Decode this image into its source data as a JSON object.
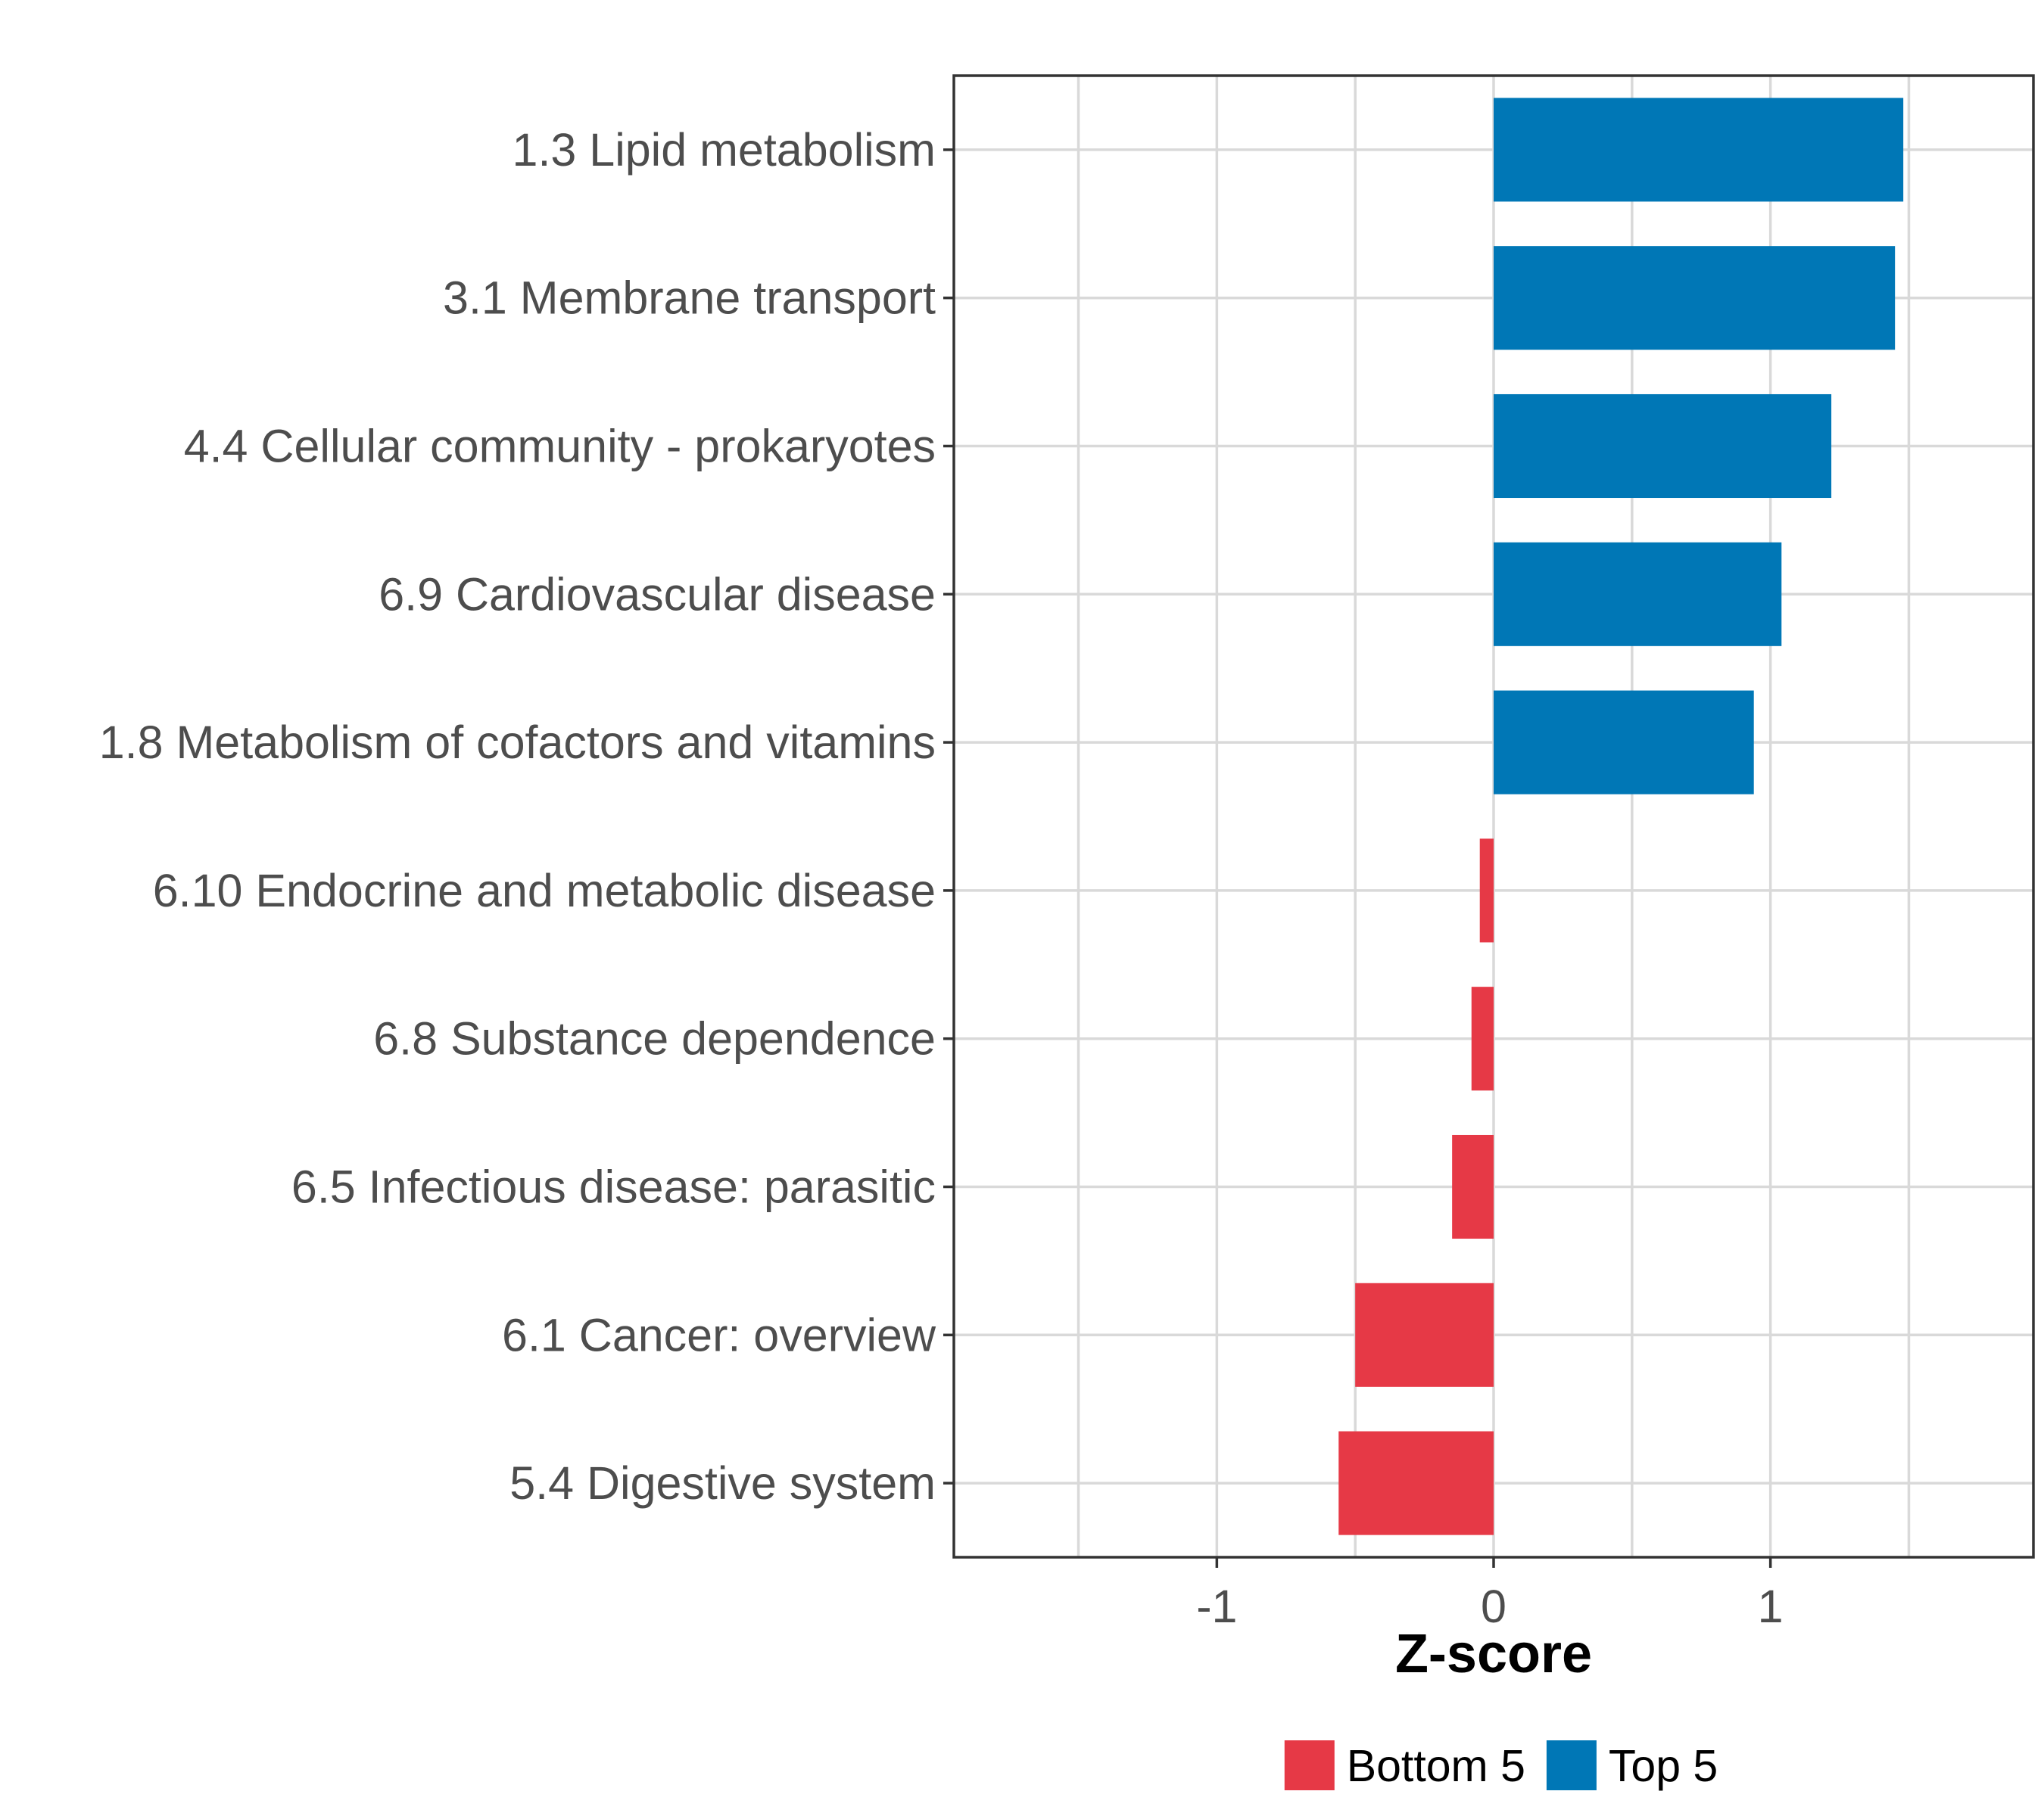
{
  "chart_data": {
    "type": "bar",
    "orientation": "horizontal",
    "title": "",
    "xlabel": "Z-score",
    "ylabel": "",
    "xlim": [
      -1.95,
      1.95
    ],
    "xticks": [
      -1,
      0,
      1
    ],
    "grid": true,
    "legend_position": "bottom",
    "categories": [
      "1.3 Lipid metabolism",
      "3.1 Membrane transport",
      "4.4 Cellular community - prokaryotes",
      "6.9 Cardiovascular disease",
      "1.8 Metabolism of cofactors and vitamins",
      "6.10 Endocrine and metabolic disease",
      "6.8 Substance dependence",
      "6.5 Infectious disease: parasitic",
      "6.1 Cancer: overview",
      "5.4 Digestive system"
    ],
    "values": [
      1.48,
      1.45,
      1.22,
      1.04,
      0.94,
      -0.05,
      -0.08,
      -0.15,
      -0.5,
      -0.56
    ],
    "groups": [
      "Top 5",
      "Top 5",
      "Top 5",
      "Top 5",
      "Top 5",
      "Bottom 5",
      "Bottom 5",
      "Bottom 5",
      "Bottom 5",
      "Bottom 5"
    ],
    "legend": [
      {
        "label": "Bottom 5",
        "color": "#e63946"
      },
      {
        "label": "Top 5",
        "color": "#0077b6"
      }
    ]
  }
}
